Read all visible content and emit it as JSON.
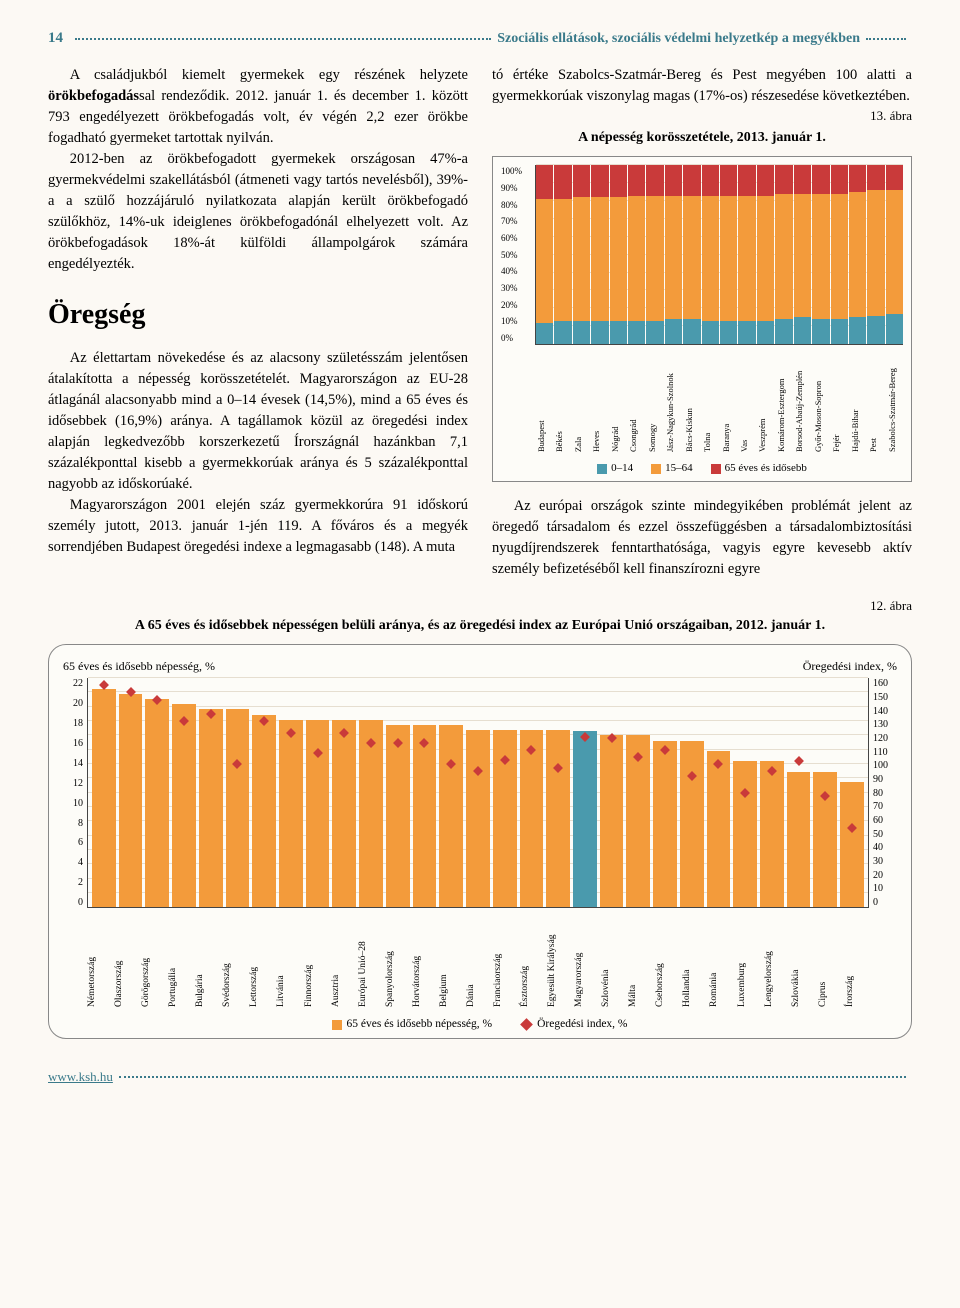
{
  "page_number": "14",
  "doc_title": "Szociális ellátások, szociális védelmi helyzetkép a megyékben",
  "p1": "A családjukból kiemelt gyermekek egy részének helyzete ",
  "p1b": "örökbefogadás",
  "p1c": "sal rendeződik. 2012. január 1. és december 1. között 793 engedélyezett örökbefogadás volt, év végén 2,2 ezer örökbe fogadható gyermeket tartottak nyilván.",
  "p2": "2012-ben az örökbefogadott gyermekek országosan 47%-a gyermekvédelmi szakellátásból (átmeneti vagy tartós nevelésből), 39%-a a szülő hozzájáruló nyilatkozata alapján került örökbefogadó szülőkhöz, 14%-uk ideiglenes örökbefogadónál elhelyezett volt. Az örökbefogadások 18%-át külföldi állampolgárok számára engedélyezték.",
  "section_title": "Öregség",
  "p3": "Az élettartam növekedése és az alacsony születésszám jelentősen átalakította a népesség korösszetételét. Magyarországon az EU-28 átlagánál alacsonyabb mind a 0–14 évesek (14,5%), mind a 65 éves és idősebbek (16,9%) aránya. A tagállamok közül az öregedési index alapján legkedvezőbb korszerkezetű Írországnál hazánkban 7,1 százalékponttal kisebb a gyermekkorúak aránya és 5 százalékponttal nagyobb az időskorúaké.",
  "p4": "Magyarországon 2001 elején száz gyermekkorúra 91 időskorú személy jutott, 2013. január 1-jén 119. A főváros és a megyék sorrendjében Budapest öregedési indexe a legmagasabb (148). A muta",
  "p5": "tó értéke Szabolcs-Szatmár-Bereg és Pest megyében 100 alatti a gyermekkorúak viszonylag magas (17%-os) részesedése következtében.",
  "p6": "Az európai országok szinte mindegyikében problémát jelent az öregedő társadalom és ezzel összefüggésben a társadalombiztosítási nyugdíjrendszerek fenntarthatósága, vagyis egyre kevesebb aktív személy befizetéséből kell finanszírozni egyre",
  "fig13_label": "13. ábra",
  "fig13_title": "A népesség korösszetétele, 2013. január 1.",
  "fig12_label": "12. ábra",
  "fig12_title": "A 65 éves és idősebbek népességen belüli aránya, és az öregedési index az Európai Unió országaiban, 2012. január 1.",
  "chart1": {
    "type": "stacked-bar",
    "ylim": [
      0,
      100
    ],
    "yticks": [
      "0%",
      "10%",
      "20%",
      "30%",
      "40%",
      "50%",
      "60%",
      "70%",
      "80%",
      "90%",
      "100%"
    ],
    "colors": {
      "c0_14": "#4a9aad",
      "c15_64": "#f39b3b",
      "c65": "#c93a3a"
    },
    "grid_color": "#e6ded0",
    "border_color": "#888888",
    "categories": [
      "Budapest",
      "Békés",
      "Zala",
      "Heves",
      "Nógrád",
      "Csongrád",
      "Somogy",
      "Jász-Nagykun-Szolnok",
      "Bács-Kiskun",
      "Tolna",
      "Baranya",
      "Vas",
      "Veszprém",
      "Komárom-Esztergom",
      "Borsod-Abaúj-Zemplén",
      "Győr-Moson-Sopron",
      "Fejér",
      "Hajdú-Bihar",
      "Pest",
      "Szabolcs-Szatmár-Bereg"
    ],
    "series": [
      {
        "a": 12,
        "b": 69,
        "c": 19
      },
      {
        "a": 13,
        "b": 68,
        "c": 19
      },
      {
        "a": 13,
        "b": 69,
        "c": 18
      },
      {
        "a": 13,
        "b": 69,
        "c": 18
      },
      {
        "a": 13,
        "b": 69,
        "c": 18
      },
      {
        "a": 13,
        "b": 70,
        "c": 17
      },
      {
        "a": 13,
        "b": 70,
        "c": 17
      },
      {
        "a": 14,
        "b": 69,
        "c": 17
      },
      {
        "a": 14,
        "b": 69,
        "c": 17
      },
      {
        "a": 13,
        "b": 70,
        "c": 17
      },
      {
        "a": 13,
        "b": 70,
        "c": 17
      },
      {
        "a": 13,
        "b": 70,
        "c": 17
      },
      {
        "a": 13,
        "b": 70,
        "c": 17
      },
      {
        "a": 14,
        "b": 70,
        "c": 16
      },
      {
        "a": 15,
        "b": 69,
        "c": 16
      },
      {
        "a": 14,
        "b": 70,
        "c": 16
      },
      {
        "a": 14,
        "b": 70,
        "c": 16
      },
      {
        "a": 15,
        "b": 70,
        "c": 15
      },
      {
        "a": 16,
        "b": 70,
        "c": 14
      },
      {
        "a": 17,
        "b": 69,
        "c": 14
      }
    ],
    "legend": [
      "0–14",
      "15–64",
      "65 éves és idősebb"
    ]
  },
  "chart2": {
    "type": "bar+scatter",
    "left_axis_label": "65 éves és idősebb népesség, %",
    "right_axis_label": "Öregedési index, %",
    "left_ticks": [
      "0",
      "2",
      "4",
      "6",
      "8",
      "10",
      "12",
      "14",
      "16",
      "18",
      "20",
      "22"
    ],
    "right_ticks": [
      "0",
      "10",
      "20",
      "30",
      "40",
      "50",
      "60",
      "70",
      "80",
      "90",
      "100",
      "110",
      "120",
      "130",
      "140",
      "150",
      "160"
    ],
    "left_max": 22,
    "right_max": 160,
    "bar_color": "#f39b3b",
    "marker_color": "#c93a3a",
    "hl_bar_color": "#4a9aad",
    "grid_color": "#e6ded0",
    "border_color": "#888888",
    "categories": [
      "Németország",
      "Olaszország",
      "Görögország",
      "Portugália",
      "Bulgária",
      "Svédország",
      "Lettország",
      "Litvánia",
      "Finnország",
      "Ausztria",
      "Európai Unió–28",
      "Spanyolország",
      "Horvátország",
      "Belgium",
      "Dánia",
      "Franciaország",
      "Észtország",
      "Egyesült Királyság",
      "Magyarország",
      "Szlovénia",
      "Málta",
      "Csehország",
      "Hollandia",
      "Románia",
      "Luxemburg",
      "Lengyelország",
      "Szlovákia",
      "Ciprus",
      "Írország"
    ],
    "bars": [
      21,
      20.5,
      20,
      19.5,
      19,
      19,
      18.5,
      18,
      18,
      18,
      18,
      17.5,
      17.5,
      17.5,
      17,
      17,
      17,
      17,
      16.9,
      16.5,
      16.5,
      16,
      16,
      15,
      14,
      14,
      13,
      13,
      12
    ],
    "markers": [
      155,
      150,
      145,
      130,
      135,
      100,
      130,
      122,
      108,
      122,
      115,
      115,
      115,
      100,
      95,
      103,
      110,
      97,
      119,
      118,
      105,
      110,
      92,
      100,
      80,
      95,
      102,
      78,
      55
    ],
    "highlight_index": 18,
    "legend_bar": "65 éves és idősebb népesség, %",
    "legend_marker": "Öregedési index, %"
  },
  "footer_link": "www.ksh.hu"
}
